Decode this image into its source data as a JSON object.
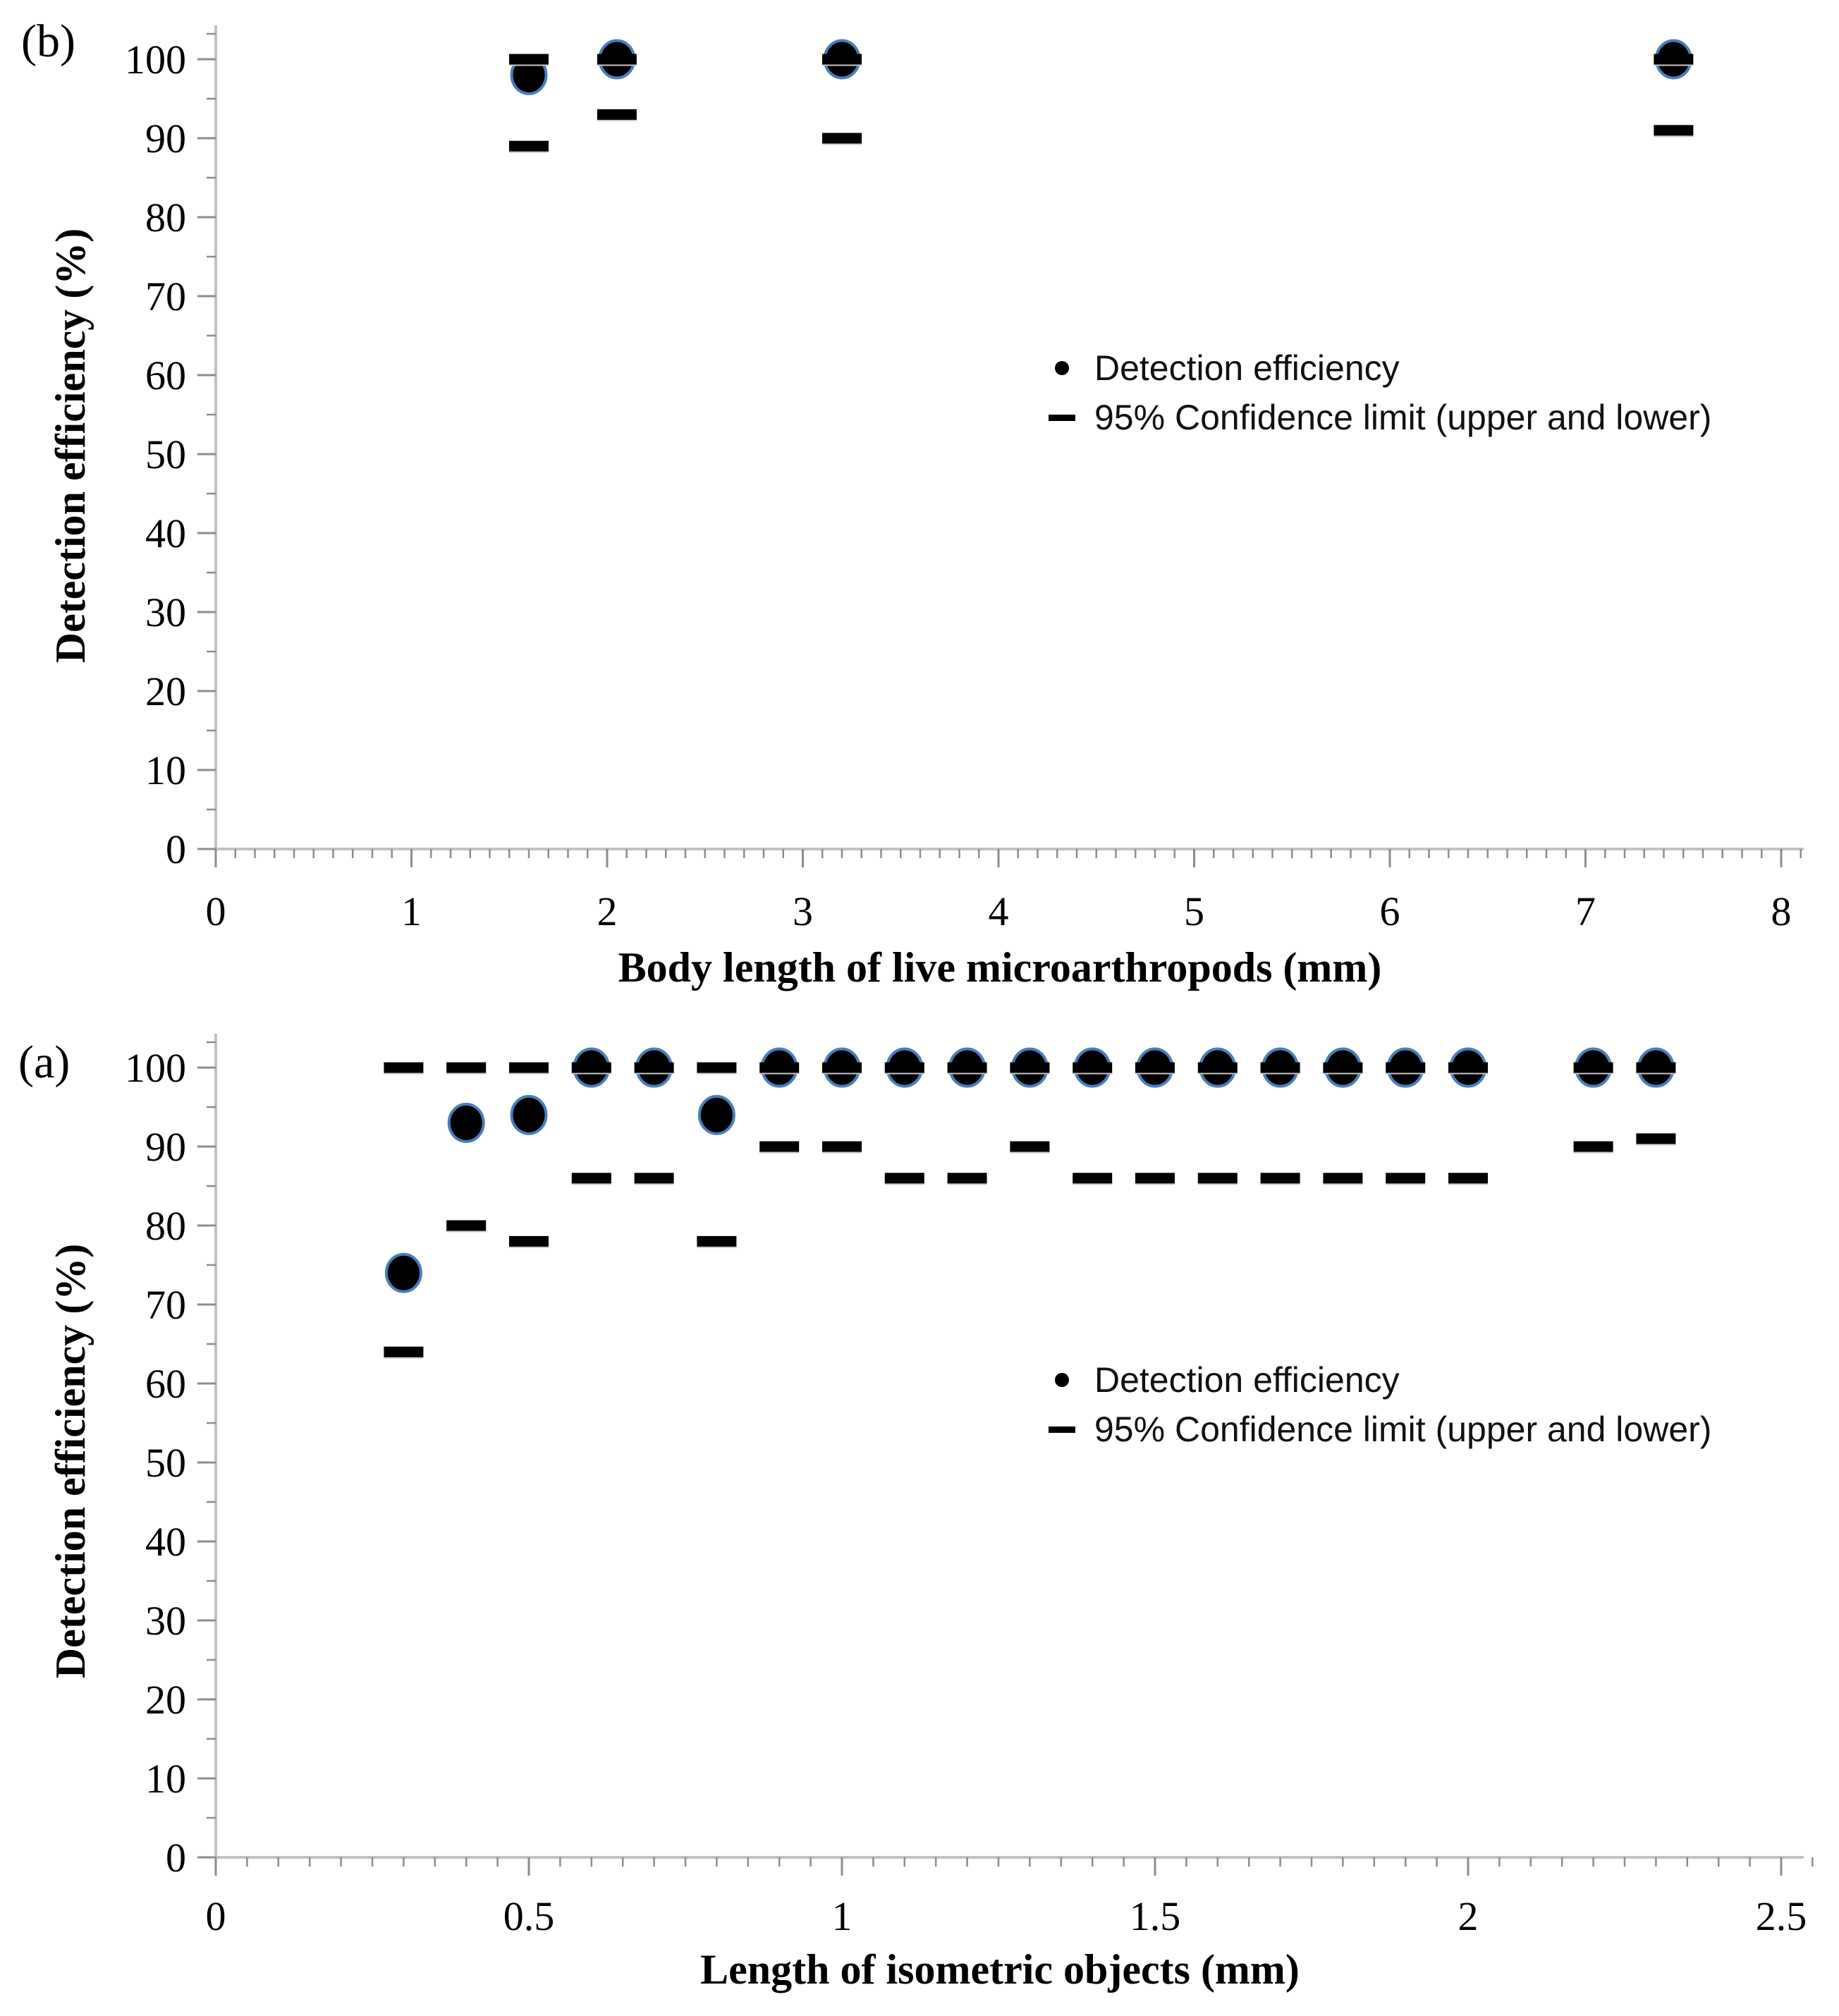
{
  "page": {
    "background": "#ffffff"
  },
  "chart_data": [
    {
      "id": "b",
      "type": "scatter",
      "panel_label": "(b)",
      "xlabel": "Body length of live microarthropods (mm)",
      "ylabel": "Detection efficiency (%)",
      "xlim": [
        0,
        8
      ],
      "ylim": [
        0,
        100
      ],
      "xtick_values": [
        0,
        1,
        2,
        3,
        4,
        5,
        6,
        7,
        8
      ],
      "xtick_labels": [
        "0",
        "1",
        "2",
        "3",
        "4",
        "5",
        "6",
        "7",
        "8"
      ],
      "x_minor_step": 0.1,
      "ytick_values": [
        0,
        10,
        20,
        30,
        40,
        50,
        60,
        70,
        80,
        90,
        100
      ],
      "ytick_labels": [
        "0",
        "10",
        "20",
        "30",
        "40",
        "50",
        "60",
        "70",
        "80",
        "90",
        "100"
      ],
      "y_minor_step": 5,
      "grid": false,
      "legend_position": "middle-right",
      "legend": [
        {
          "marker": "dot",
          "label": "Detection efficiency"
        },
        {
          "marker": "dash",
          "label": "95% Confidence limit (upper and lower)"
        }
      ],
      "series": [
        {
          "name": "Detection efficiency",
          "marker": "dot",
          "x": [
            1.6,
            2.05,
            3.2,
            7.45
          ],
          "y": [
            98,
            100,
            100,
            100
          ]
        },
        {
          "name": "95% Confidence limit (upper)",
          "marker": "dash",
          "x": [
            1.6,
            2.05,
            3.2,
            7.45
          ],
          "y": [
            100,
            100,
            100,
            100
          ]
        },
        {
          "name": "95% Confidence limit (lower)",
          "marker": "dash",
          "x": [
            1.6,
            2.05,
            3.2,
            7.45
          ],
          "y": [
            89,
            93,
            90,
            91
          ]
        }
      ],
      "colors": {
        "marker_fill": "#000000",
        "marker_edge": "#4a7ebc",
        "dash": "#000000",
        "dash_shadow": "#c8c8c8",
        "axis_line": "#c2c2c2",
        "tick": "#8c8c8c",
        "text": "#000000"
      }
    },
    {
      "id": "a",
      "type": "scatter",
      "panel_label": "(a)",
      "xlabel": "Length of isometric objects (mm)",
      "ylabel": "Detection efficiency (%)",
      "xlim": [
        0,
        2.5
      ],
      "ylim": [
        0,
        100
      ],
      "xtick_values": [
        0,
        0.5,
        1,
        1.5,
        2,
        2.5
      ],
      "xtick_labels": [
        "0",
        "0.5",
        "1",
        "1.5",
        "2",
        "2.5"
      ],
      "x_minor_step": 0.05,
      "ytick_values": [
        0,
        10,
        20,
        30,
        40,
        50,
        60,
        70,
        80,
        90,
        100
      ],
      "ytick_labels": [
        "0",
        "10",
        "20",
        "30",
        "40",
        "50",
        "60",
        "70",
        "80",
        "90",
        "100"
      ],
      "y_minor_step": 5,
      "grid": false,
      "legend_position": "middle-right",
      "legend": [
        {
          "marker": "dot",
          "label": "Detection efficiency"
        },
        {
          "marker": "dash",
          "label": "95% Confidence limit (upper and lower)"
        }
      ],
      "series": [
        {
          "name": "Detection efficiency",
          "marker": "dot",
          "x": [
            0.3,
            0.4,
            0.5,
            0.6,
            0.7,
            0.8,
            0.9,
            1.0,
            1.1,
            1.2,
            1.3,
            1.4,
            1.5,
            1.6,
            1.7,
            1.8,
            1.9,
            2.0,
            2.2,
            2.3
          ],
          "y": [
            74,
            93,
            94,
            100,
            100,
            94,
            100,
            100,
            100,
            100,
            100,
            100,
            100,
            100,
            100,
            100,
            100,
            100,
            100,
            100
          ]
        },
        {
          "name": "95% Confidence limit (upper)",
          "marker": "dash",
          "x": [
            0.3,
            0.4,
            0.5,
            0.6,
            0.7,
            0.8,
            0.9,
            1.0,
            1.1,
            1.2,
            1.3,
            1.4,
            1.5,
            1.6,
            1.7,
            1.8,
            1.9,
            2.0,
            2.2,
            2.3
          ],
          "y": [
            100,
            100,
            100,
            100,
            100,
            100,
            100,
            100,
            100,
            100,
            100,
            100,
            100,
            100,
            100,
            100,
            100,
            100,
            100,
            100
          ]
        },
        {
          "name": "95% Confidence limit (lower)",
          "marker": "dash",
          "x": [
            0.3,
            0.4,
            0.5,
            0.6,
            0.7,
            0.8,
            0.9,
            1.0,
            1.1,
            1.2,
            1.3,
            1.4,
            1.5,
            1.6,
            1.7,
            1.8,
            1.9,
            2.0,
            2.2,
            2.3
          ],
          "y": [
            64,
            80,
            78,
            86,
            86,
            78,
            90,
            90,
            86,
            86,
            90,
            86,
            86,
            86,
            86,
            86,
            86,
            86,
            90,
            91
          ]
        }
      ],
      "colors": {
        "marker_fill": "#000000",
        "marker_edge": "#4a7ebc",
        "dash": "#000000",
        "dash_shadow": "#c8c8c8",
        "axis_line": "#c2c2c2",
        "tick": "#8c8c8c",
        "text": "#000000"
      }
    }
  ]
}
